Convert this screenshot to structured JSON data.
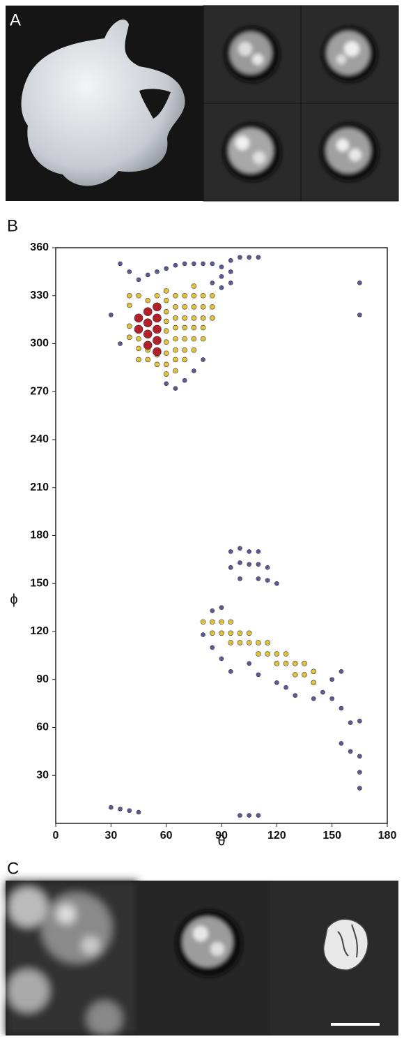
{
  "panel_labels": {
    "a": "A",
    "b": "B",
    "c": "C"
  },
  "chart_data": {
    "type": "scatter",
    "xlabel": "θ",
    "ylabel": "ϕ",
    "xlim": [
      0,
      180
    ],
    "ylim": [
      0,
      360
    ],
    "xticks": [
      0,
      30,
      60,
      90,
      120,
      150,
      180
    ],
    "yticks": [
      30,
      60,
      90,
      120,
      150,
      180,
      210,
      240,
      270,
      300,
      330,
      360
    ],
    "series": [
      {
        "color": "#5a5a9a",
        "size": 3,
        "x": [
          35,
          40,
          45,
          50,
          55,
          60,
          65,
          70,
          75,
          80,
          85,
          90,
          95,
          100,
          105,
          110,
          90,
          95,
          90,
          95,
          85,
          30,
          35,
          60,
          65,
          70,
          75,
          80,
          165,
          165,
          95,
          100,
          105,
          110,
          95,
          100,
          105,
          110,
          115,
          100,
          110,
          115,
          120,
          85,
          90,
          80,
          85,
          90,
          95,
          105,
          110,
          120,
          125,
          130,
          140,
          145,
          150,
          155,
          150,
          155,
          160,
          165,
          155,
          160,
          165,
          165,
          165,
          30,
          35,
          40,
          45,
          100,
          105,
          110
        ],
        "values": [
          350,
          345,
          340,
          343,
          345,
          347,
          349,
          350,
          350,
          350,
          350,
          348,
          352,
          354,
          354,
          354,
          342,
          345,
          335,
          338,
          338,
          318,
          300,
          275,
          272,
          277,
          283,
          290,
          338,
          318,
          170,
          172,
          170,
          170,
          160,
          163,
          162,
          162,
          160,
          153,
          153,
          152,
          150,
          133,
          135,
          118,
          110,
          103,
          95,
          100,
          93,
          88,
          85,
          80,
          78,
          82,
          90,
          95,
          78,
          72,
          63,
          64,
          50,
          45,
          42,
          32,
          22,
          10,
          9,
          8,
          7,
          5,
          5,
          5
        ]
      },
      {
        "color": "#e2c23a",
        "size": 3.5,
        "x": [
          40,
          40,
          40,
          40,
          45,
          45,
          45,
          45,
          50,
          50,
          50,
          55,
          55,
          55,
          60,
          60,
          60,
          60,
          60,
          60,
          60,
          60,
          60,
          65,
          65,
          65,
          65,
          65,
          65,
          65,
          65,
          70,
          70,
          70,
          70,
          70,
          70,
          70,
          75,
          75,
          75,
          75,
          75,
          75,
          75,
          80,
          80,
          80,
          80,
          80,
          85,
          85,
          85,
          80,
          85,
          85,
          90,
          90,
          95,
          95,
          95,
          100,
          100,
          105,
          105,
          110,
          110,
          115,
          115,
          120,
          120,
          125,
          125,
          130,
          130,
          135,
          135,
          140,
          140
        ],
        "values": [
          304,
          311,
          324,
          330,
          290,
          297,
          303,
          330,
          290,
          296,
          327,
          287,
          293,
          330,
          281,
          287,
          294,
          301,
          308,
          314,
          320,
          327,
          333,
          283,
          290,
          296,
          303,
          310,
          316,
          323,
          330,
          290,
          296,
          303,
          310,
          316,
          323,
          330,
          296,
          303,
          310,
          316,
          323,
          330,
          336,
          303,
          310,
          316,
          323,
          330,
          316,
          323,
          330,
          126,
          119,
          126,
          119,
          126,
          113,
          119,
          126,
          113,
          119,
          113,
          119,
          106,
          113,
          106,
          113,
          100,
          106,
          100,
          106,
          93,
          100,
          93,
          100,
          88,
          95
        ]
      },
      {
        "color": "#b3202a",
        "size": 6,
        "x": [
          45,
          45,
          50,
          50,
          50,
          50,
          55,
          55,
          55,
          55,
          55
        ],
        "values": [
          316,
          309,
          320,
          313,
          306,
          299,
          323,
          316,
          309,
          302,
          295
        ]
      }
    ]
  }
}
